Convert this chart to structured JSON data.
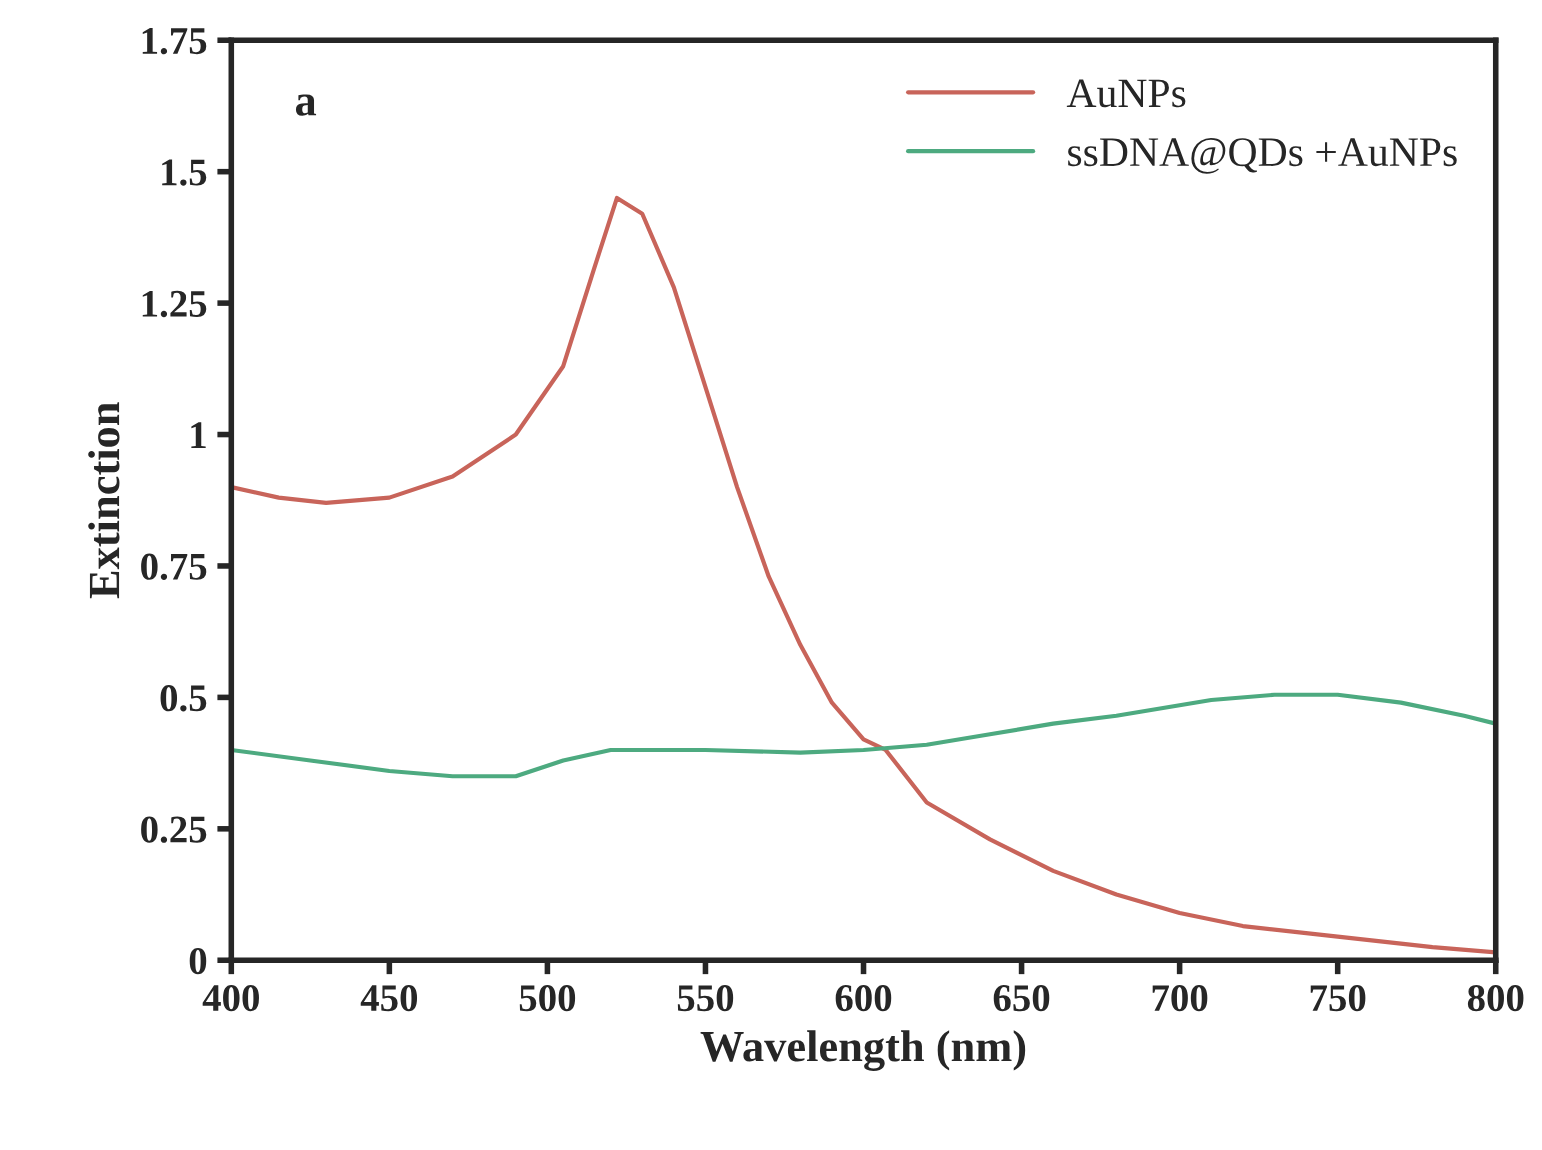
{
  "chart_data": {
    "type": "line",
    "xlabel": "Wavelength (nm)",
    "ylabel": "Extinction",
    "annotations": [
      "a"
    ],
    "xlim": [
      400,
      800
    ],
    "xticks": [
      400,
      450,
      500,
      550,
      600,
      650,
      700,
      750,
      800
    ],
    "ylim": [
      0,
      1.75
    ],
    "yticks": [
      0,
      0.25,
      0.5,
      0.75,
      1,
      1.25,
      1.5,
      1.75
    ],
    "grid": false,
    "legend": "top right",
    "marker": "none",
    "line_style": "solid",
    "series": [
      {
        "name": "AuNPs",
        "color": "#c8645a",
        "x": [
          400,
          415,
          430,
          450,
          470,
          490,
          505,
          515,
          522,
          530,
          540,
          550,
          560,
          570,
          580,
          590,
          600,
          607,
          620,
          640,
          660,
          680,
          700,
          720,
          750,
          780,
          800
        ],
        "values": [
          0.9,
          0.88,
          0.87,
          0.88,
          0.92,
          1.0,
          1.13,
          1.32,
          1.45,
          1.42,
          1.28,
          1.09,
          0.9,
          0.73,
          0.6,
          0.49,
          0.42,
          0.4,
          0.3,
          0.23,
          0.17,
          0.125,
          0.09,
          0.065,
          0.045,
          0.025,
          0.015
        ]
      },
      {
        "name": "ssDNA@QDs +AuNPs",
        "color": "#4daa80",
        "x": [
          400,
          425,
          450,
          470,
          490,
          505,
          520,
          550,
          580,
          600,
          620,
          640,
          660,
          680,
          710,
          730,
          750,
          770,
          790,
          800
        ],
        "values": [
          0.4,
          0.38,
          0.36,
          0.35,
          0.35,
          0.38,
          0.4,
          0.4,
          0.395,
          0.4,
          0.41,
          0.43,
          0.45,
          0.465,
          0.495,
          0.505,
          0.505,
          0.49,
          0.465,
          0.45
        ]
      }
    ]
  }
}
